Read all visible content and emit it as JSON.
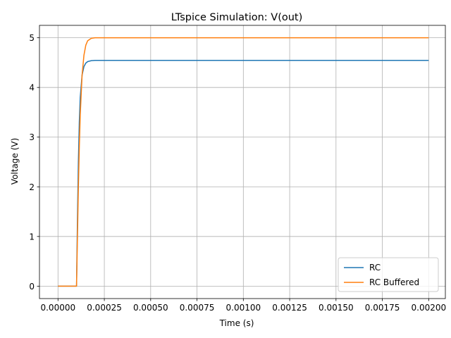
{
  "chart_data": {
    "type": "line",
    "title": "LTspice Simulation: V(out)",
    "xlabel": "Time (s)",
    "ylabel": "Voltage (V)",
    "xlim": [
      -0.0001,
      0.00209
    ],
    "ylim": [
      -0.25,
      5.25
    ],
    "xticks": [
      0.0,
      0.00025,
      0.0005,
      0.00075,
      0.001,
      0.00125,
      0.0015,
      0.00175,
      0.002
    ],
    "xtick_labels": [
      "0.00000",
      "0.00025",
      "0.00050",
      "0.00075",
      "0.00100",
      "0.00125",
      "0.00150",
      "0.00175",
      "0.00200"
    ],
    "yticks": [
      0,
      1,
      2,
      3,
      4,
      5
    ],
    "ytick_labels": [
      "0",
      "1",
      "2",
      "3",
      "4",
      "5"
    ],
    "grid": true,
    "legend_position": "lower-right",
    "series": [
      {
        "name": "RC",
        "color": "#1f77b4",
        "x": [
          0.0,
          0.0001,
          0.000105,
          0.00011,
          0.000115,
          0.00012,
          0.00013,
          0.00014,
          0.00015,
          0.00016,
          0.00018,
          0.0002,
          0.00025,
          0.0003,
          0.0005,
          0.001,
          0.0015,
          0.002
        ],
        "y": [
          0.0,
          0.0,
          1.35,
          2.5,
          3.3,
          3.8,
          4.25,
          4.42,
          4.49,
          4.52,
          4.54,
          4.545,
          4.545,
          4.545,
          4.545,
          4.545,
          4.545,
          4.545
        ]
      },
      {
        "name": "RC Buffered",
        "color": "#ff7f0e",
        "x": [
          0.0,
          0.0001,
          0.000105,
          0.00011,
          0.000115,
          0.00012,
          0.00013,
          0.00014,
          0.00015,
          0.00016,
          0.00018,
          0.0002,
          0.00025,
          0.0003,
          0.0005,
          0.001,
          0.0015,
          0.002
        ],
        "y": [
          0.0,
          0.0,
          1.0,
          2.0,
          2.8,
          3.45,
          4.25,
          4.65,
          4.85,
          4.94,
          4.99,
          5.0,
          5.0,
          5.0,
          5.0,
          5.0,
          5.0,
          5.0
        ]
      }
    ]
  }
}
